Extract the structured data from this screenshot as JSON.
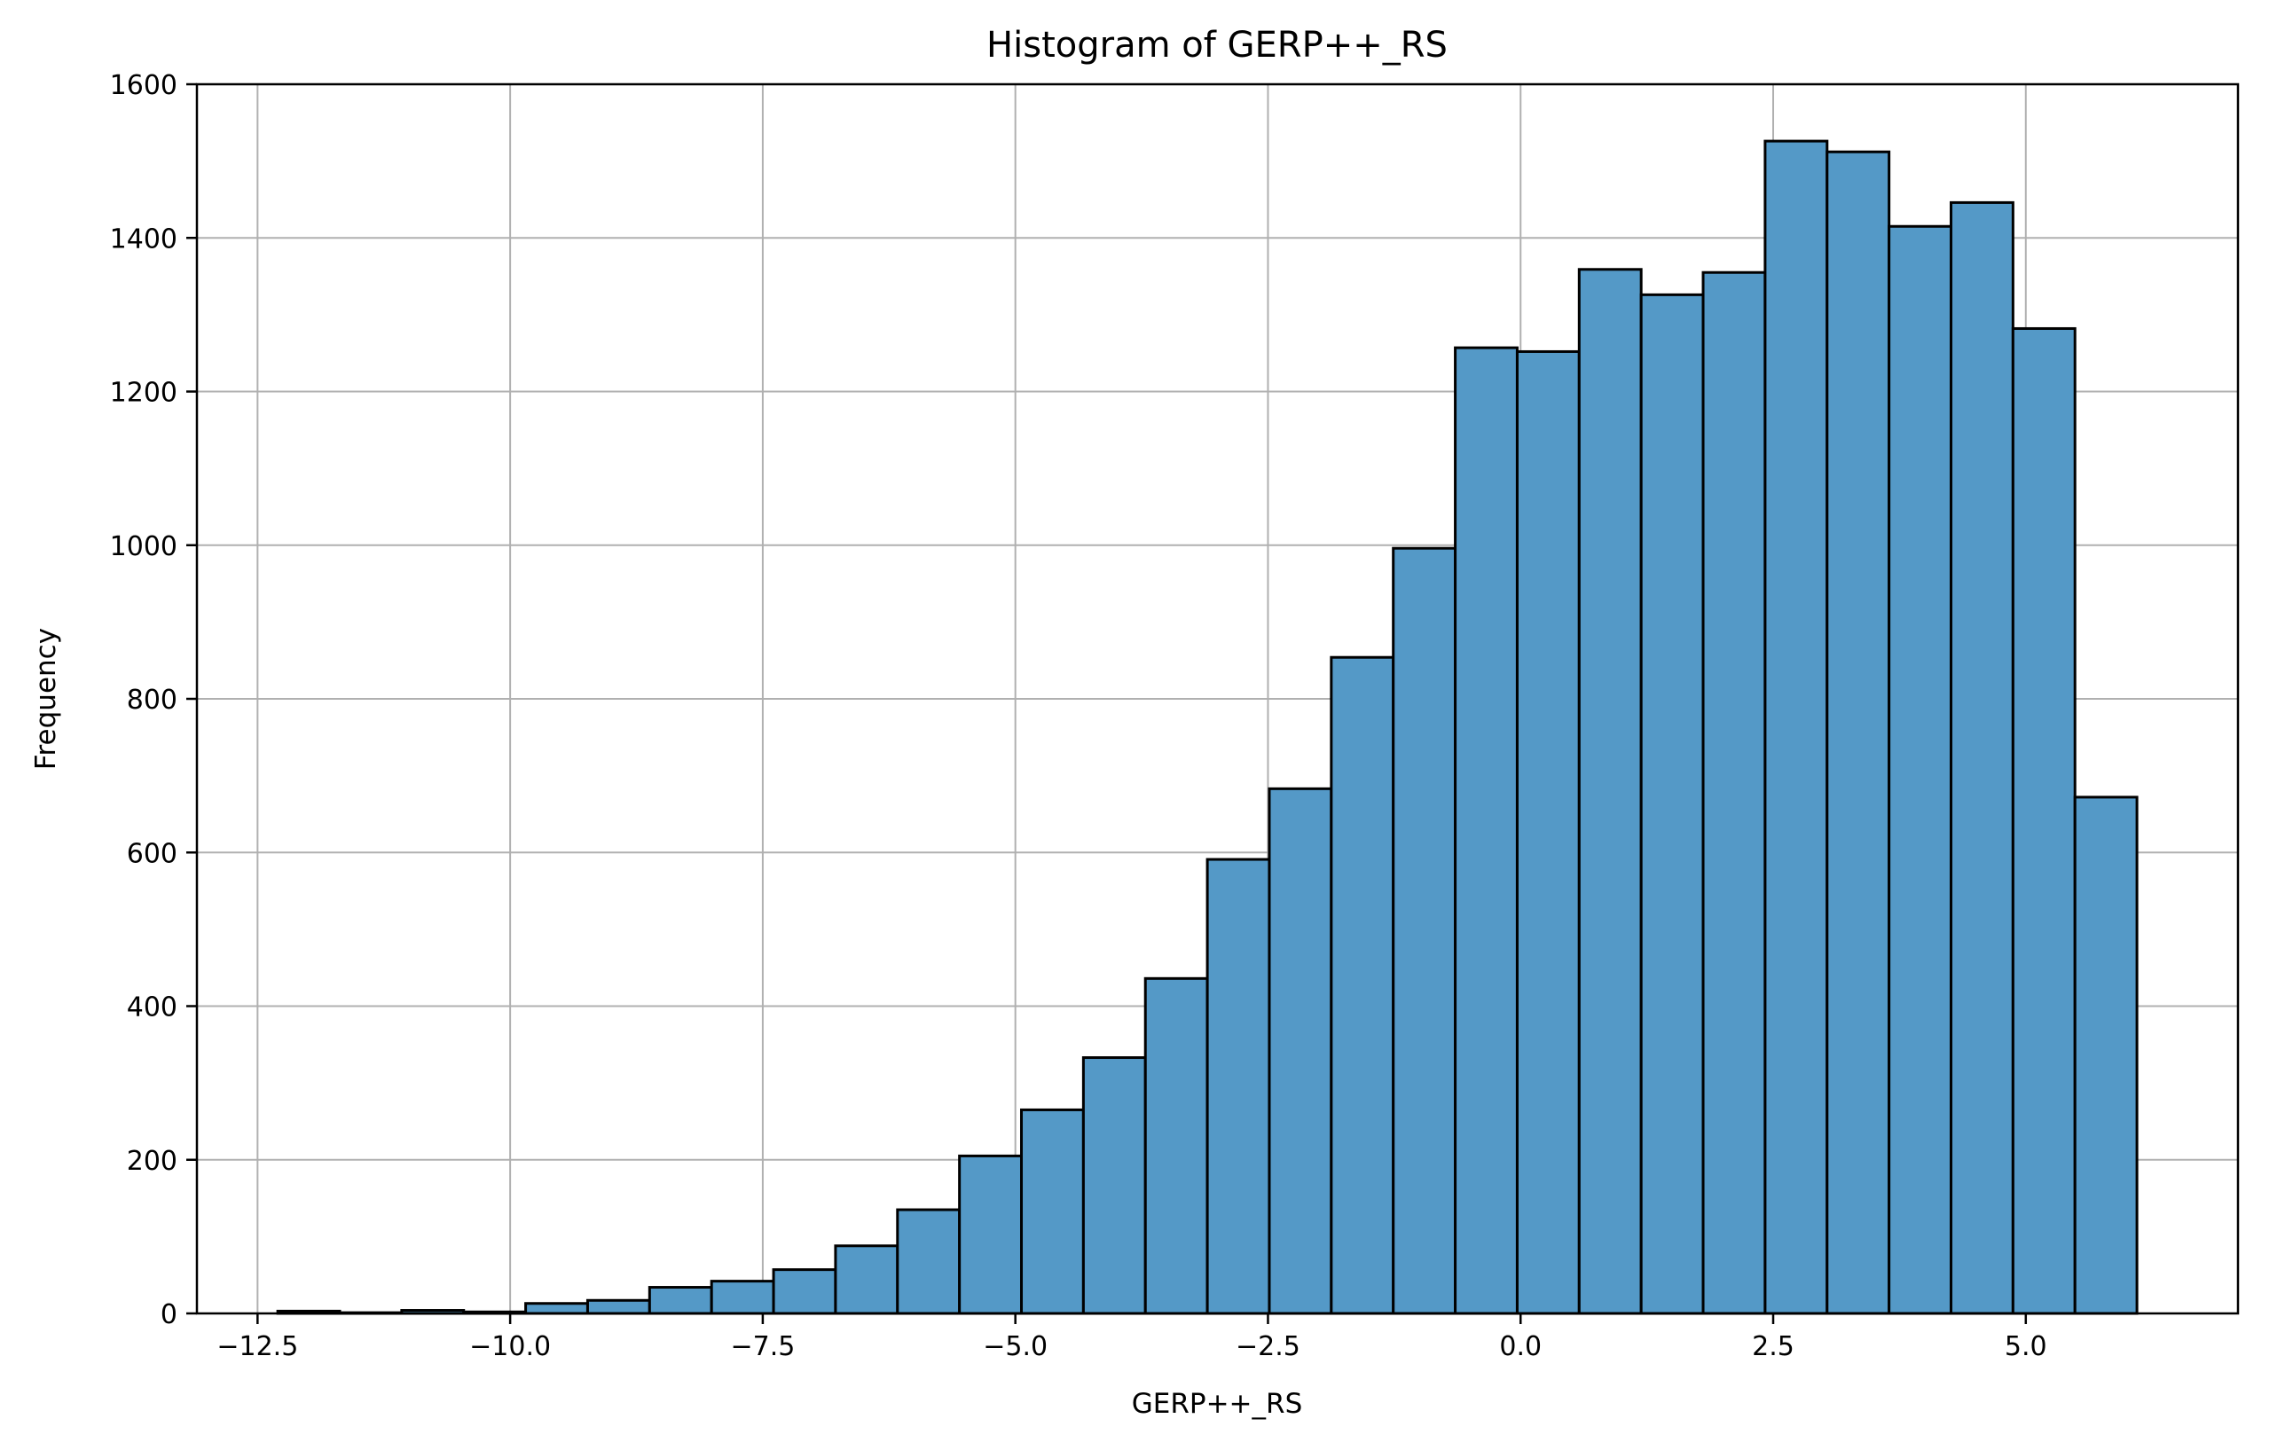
{
  "chart_data": {
    "type": "bar",
    "title": "Histogram of GERP++_RS",
    "xlabel": "GERP++_RS",
    "ylabel": "Frequency",
    "xlim": [
      -13.1,
      7.1
    ],
    "ylim": [
      0,
      1600
    ],
    "grid": true,
    "bar_color": "#5499c7",
    "edge_color": "#000000",
    "x_ticks": [
      -12.5,
      -10.0,
      -7.5,
      -5.0,
      -2.5,
      0.0,
      2.5,
      5.0
    ],
    "x_tick_labels": [
      "−12.5",
      "−10.0",
      "−7.5",
      "−5.0",
      "−2.5",
      "0.0",
      "2.5",
      "5.0"
    ],
    "y_ticks": [
      0,
      200,
      400,
      600,
      800,
      1000,
      1200,
      1400,
      1600
    ],
    "y_tick_labels": [
      "0",
      "200",
      "400",
      "600",
      "800",
      "1000",
      "1200",
      "1400",
      "1600"
    ],
    "bin_start": -12.3,
    "bin_end": 6.1,
    "values": [
      3,
      1,
      4,
      2,
      13,
      17,
      34,
      42,
      57,
      88,
      135,
      205,
      265,
      333,
      436,
      591,
      683,
      854,
      996,
      1257,
      1252,
      1359,
      1326,
      1355,
      1526,
      1512,
      1415,
      1446,
      1282,
      672
    ]
  }
}
